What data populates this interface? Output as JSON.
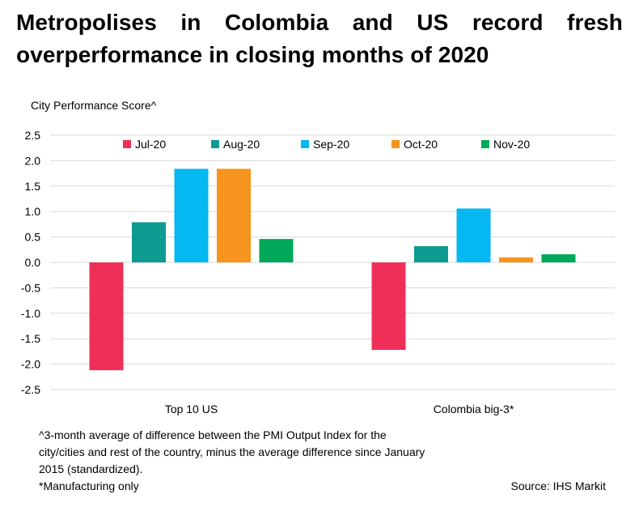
{
  "title": "Metropolises in Colombia and US record fresh overperformance in closing months of 2020",
  "chart_data": {
    "type": "bar",
    "ylabel": "City Performance Score^",
    "xlabel": "",
    "categories": [
      "Top 10 US",
      "Colombia big-3*"
    ],
    "series": [
      {
        "name": "Jul-20",
        "color": "#ee3058",
        "values": [
          -2.12,
          -1.72
        ]
      },
      {
        "name": "Aug-20",
        "color": "#0d9a91",
        "values": [
          0.79,
          0.32
        ]
      },
      {
        "name": "Sep-20",
        "color": "#05b8f1",
        "values": [
          1.84,
          1.06
        ]
      },
      {
        "name": "Oct-20",
        "color": "#f7941d",
        "values": [
          1.84,
          0.1
        ]
      },
      {
        "name": "Nov-20",
        "color": "#00a859",
        "values": [
          0.46,
          0.16
        ]
      }
    ],
    "ylim": [
      -2.5,
      2.5
    ],
    "yticks": [
      "2.5",
      "2.0",
      "1.5",
      "1.0",
      "0.5",
      "0.0",
      "-0.5",
      "-1.0",
      "-1.5",
      "-2.0",
      "-2.5"
    ],
    "grid": true,
    "legend": "top"
  },
  "notes": {
    "line1": "^3-month average of difference between the PMI Output Index for the",
    "line2": "city/cities and rest of the country, minus the average difference since January",
    "line3": "2015 (standardized).",
    "line4": "*Manufacturing only"
  },
  "source": "Source: IHS Markit"
}
